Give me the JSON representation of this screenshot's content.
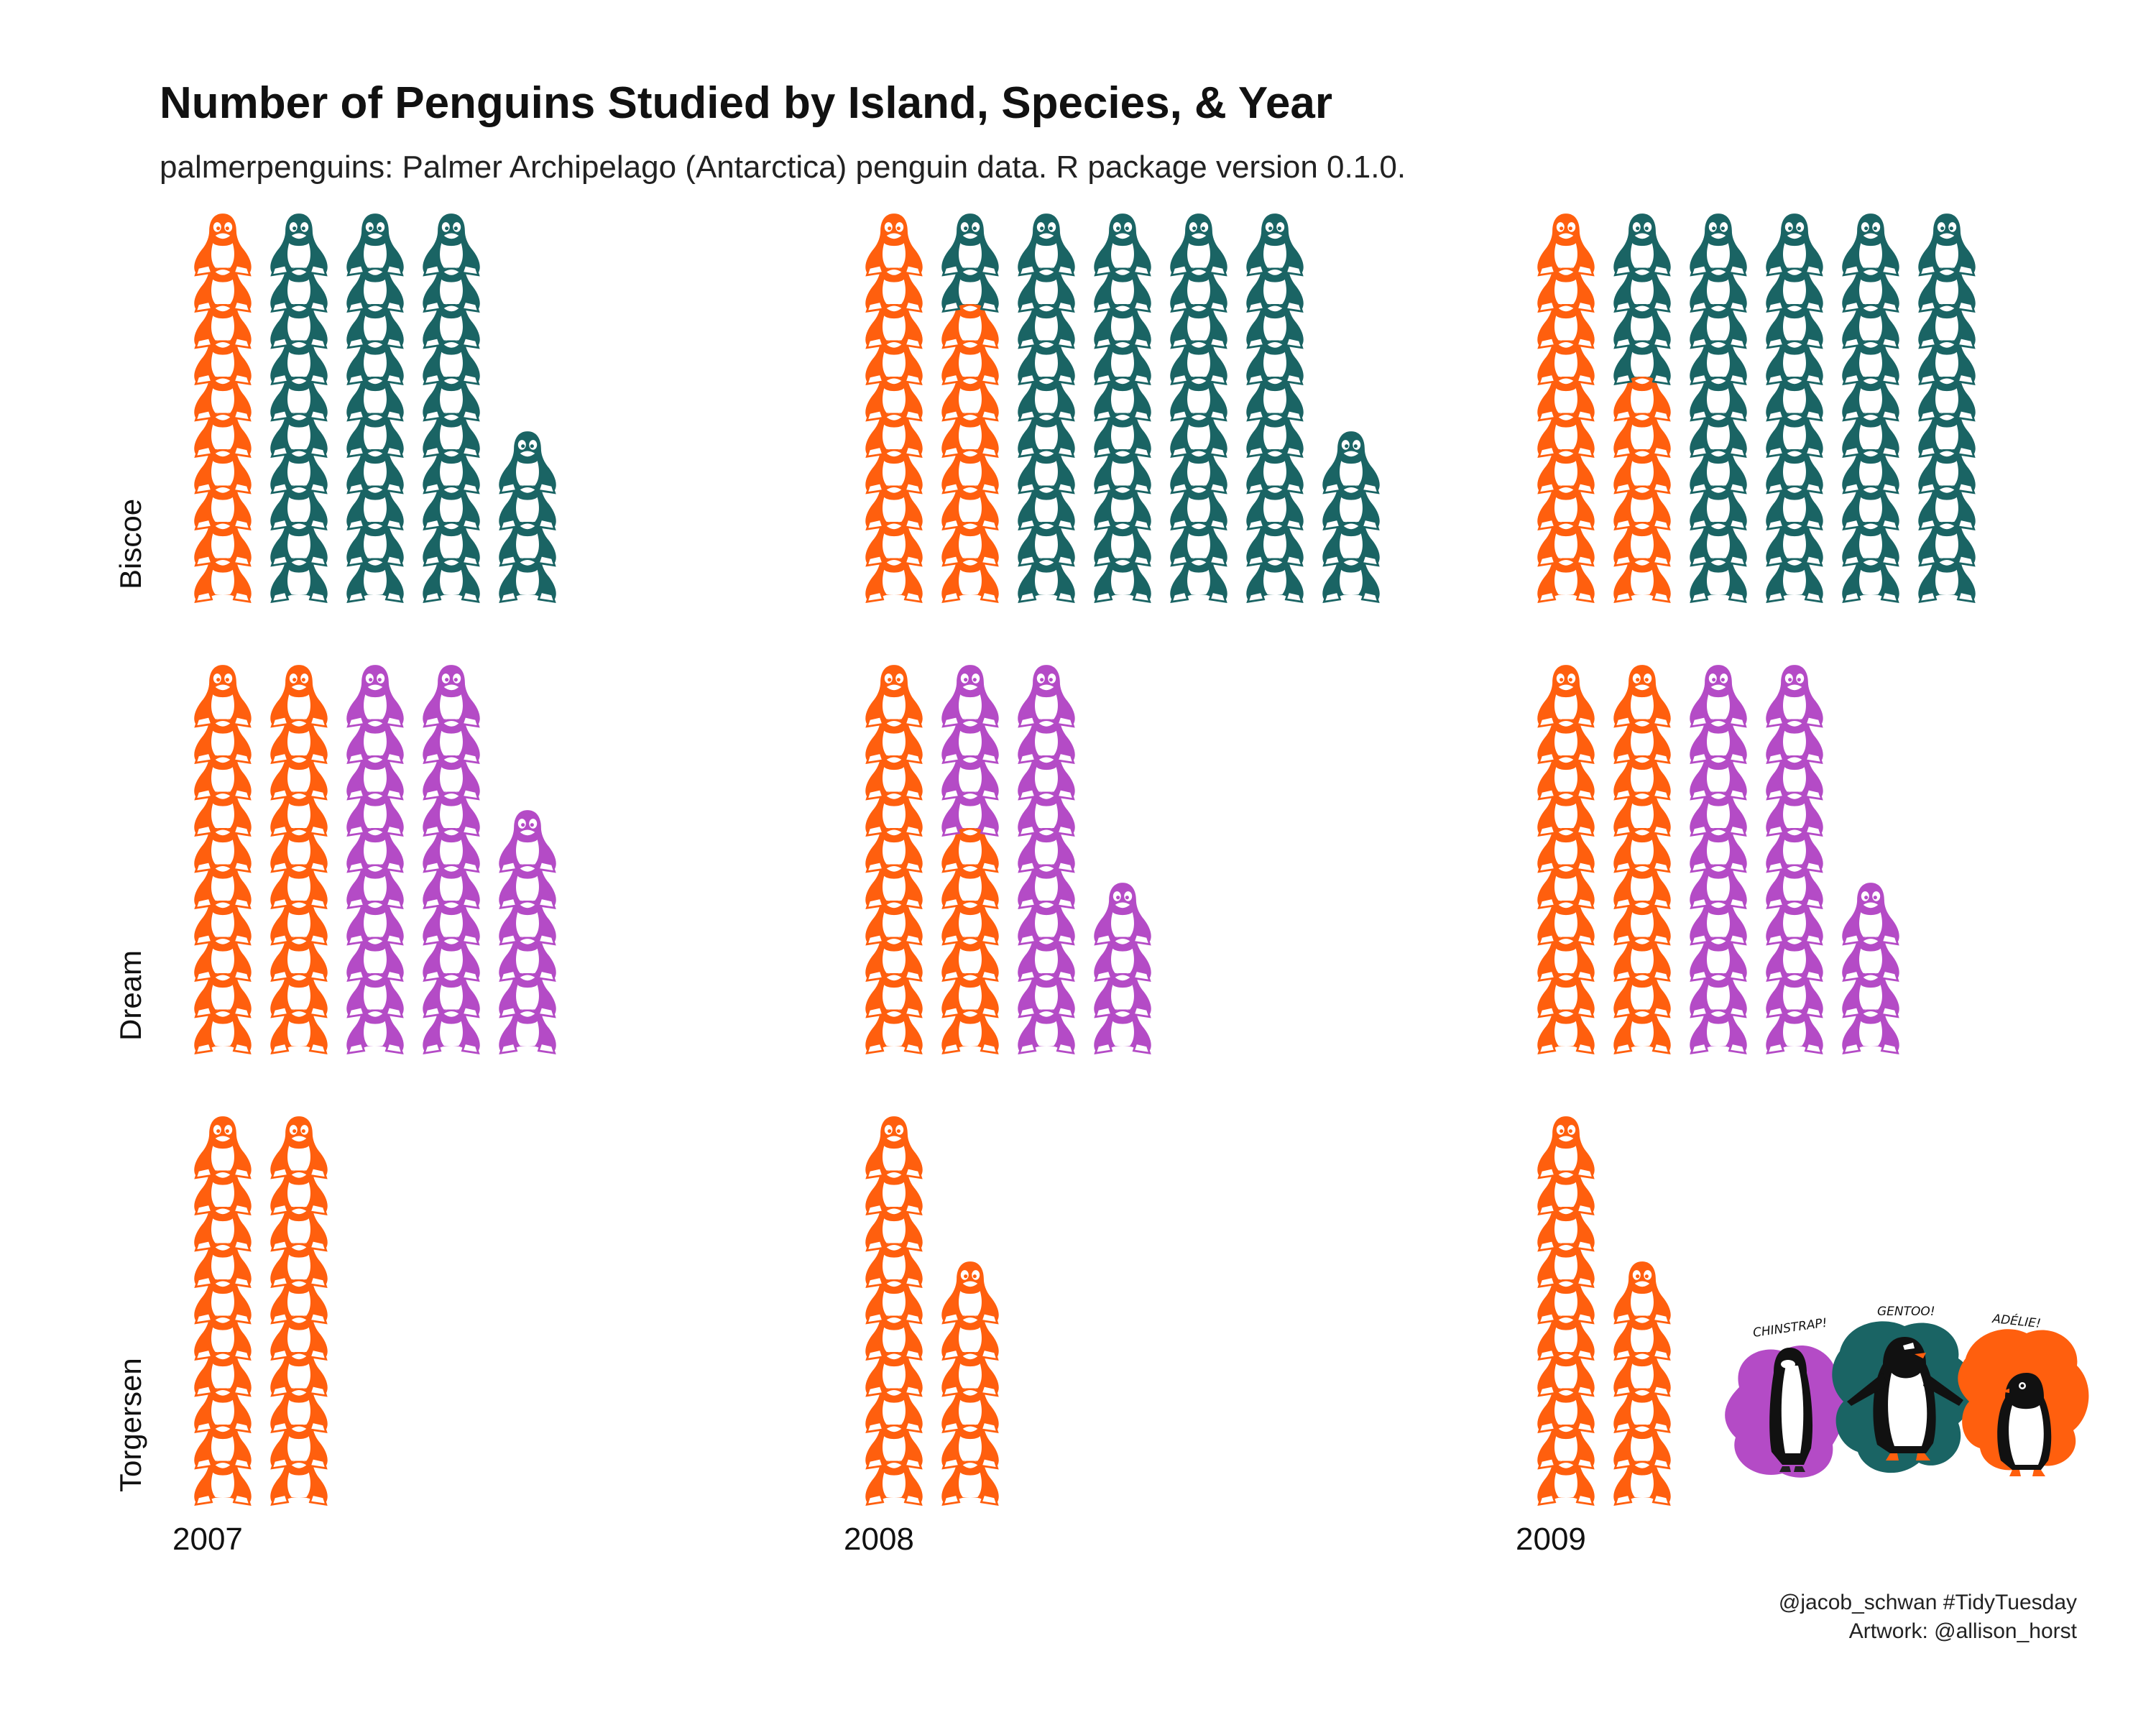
{
  "title": "Number of Penguins Studied by Island, Species, & Year",
  "subtitle": "palmerpenguins: Palmer Archipelago (Antarctica) penguin data. R package version 0.1.0.",
  "caption": {
    "line1": "@jacob_schwan #TidyTuesday",
    "line2": "Artwork: @allison_horst"
  },
  "colors": {
    "Adelie": "#FF5F0E",
    "Gentoo": "#1A6464",
    "Chinstrap": "#B44BC6"
  },
  "artwork": {
    "icon": "penguin-trio-illustration",
    "labels": [
      "CHINSTRAP!",
      "GENTOO!",
      "ADÉLIE!"
    ]
  },
  "chart_data": {
    "type": "pictograph",
    "unit_per_icon": 1,
    "icons_per_column": 10,
    "species_order": [
      "Adelie",
      "Gentoo",
      "Chinstrap"
    ],
    "facet_columns": [
      "2007",
      "2008",
      "2009"
    ],
    "facet_rows": [
      "Biscoe",
      "Dream",
      "Torgersen"
    ],
    "facets": [
      {
        "island": "Biscoe",
        "year": "2007",
        "counts": {
          "Adelie": 10,
          "Gentoo": 34,
          "Chinstrap": 0
        }
      },
      {
        "island": "Biscoe",
        "year": "2008",
        "counts": {
          "Adelie": 18,
          "Gentoo": 46,
          "Chinstrap": 0
        }
      },
      {
        "island": "Biscoe",
        "year": "2009",
        "counts": {
          "Adelie": 16,
          "Gentoo": 44,
          "Chinstrap": 0
        }
      },
      {
        "island": "Dream",
        "year": "2007",
        "counts": {
          "Adelie": 20,
          "Gentoo": 0,
          "Chinstrap": 26
        }
      },
      {
        "island": "Dream",
        "year": "2008",
        "counts": {
          "Adelie": 16,
          "Gentoo": 0,
          "Chinstrap": 18
        }
      },
      {
        "island": "Dream",
        "year": "2009",
        "counts": {
          "Adelie": 20,
          "Gentoo": 0,
          "Chinstrap": 24
        }
      },
      {
        "island": "Torgersen",
        "year": "2007",
        "counts": {
          "Adelie": 20,
          "Gentoo": 0,
          "Chinstrap": 0
        }
      },
      {
        "island": "Torgersen",
        "year": "2008",
        "counts": {
          "Adelie": 16,
          "Gentoo": 0,
          "Chinstrap": 0
        }
      },
      {
        "island": "Torgersen",
        "year": "2009",
        "counts": {
          "Adelie": 16,
          "Gentoo": 0,
          "Chinstrap": 0
        }
      }
    ]
  }
}
